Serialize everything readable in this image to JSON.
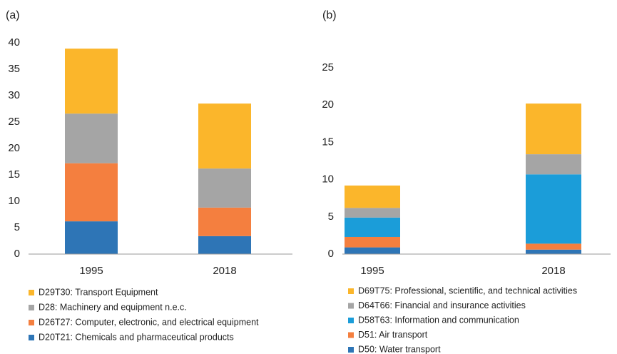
{
  "chart_data": [
    {
      "type": "stacked_bar",
      "title": "(a)",
      "categories": [
        "1995",
        "2018"
      ],
      "ylim": [
        0,
        40
      ],
      "yticks": [
        0,
        5,
        10,
        15,
        20,
        25,
        30,
        35,
        40
      ],
      "series": [
        {
          "name": "D20T21: Chemicals and pharmaceutical products",
          "color": "#2e75b6",
          "values": [
            6.2,
            3.4
          ]
        },
        {
          "name": "D26T27: Computer, electronic, and electrical equipment",
          "color": "#f47f3f",
          "values": [
            11,
            5.4
          ]
        },
        {
          "name": "D28: Machinery and equipment n.e.c.",
          "color": "#a5a5a5",
          "values": [
            9.4,
            7.4
          ]
        },
        {
          "name": "D29T30: Transport Equipment",
          "color": "#fbb62b",
          "values": [
            12.3,
            12.3
          ]
        }
      ]
    },
    {
      "type": "stacked_bar",
      "title": "(b)",
      "categories": [
        "1995",
        "2018"
      ],
      "ylim": [
        0,
        25
      ],
      "yticks": [
        0,
        5,
        10,
        15,
        20,
        25
      ],
      "series": [
        {
          "name": "D50: Water transport",
          "color": "#2e75b6",
          "values": [
            0.9,
            0.6
          ]
        },
        {
          "name": "D51: Air transport",
          "color": "#f47f3f",
          "values": [
            1.4,
            0.8
          ]
        },
        {
          "name": "D58T63: Information and communication",
          "color": "#1b9dd9",
          "values": [
            2.6,
            9.3
          ]
        },
        {
          "name": "D64T66: Financial and insurance activities",
          "color": "#a5a5a5",
          "values": [
            1.3,
            2.7
          ]
        },
        {
          "name": "D69T75: Professional, scientific, and technical activities",
          "color": "#fbb62b",
          "values": [
            3.0,
            6.8
          ]
        }
      ]
    }
  ]
}
